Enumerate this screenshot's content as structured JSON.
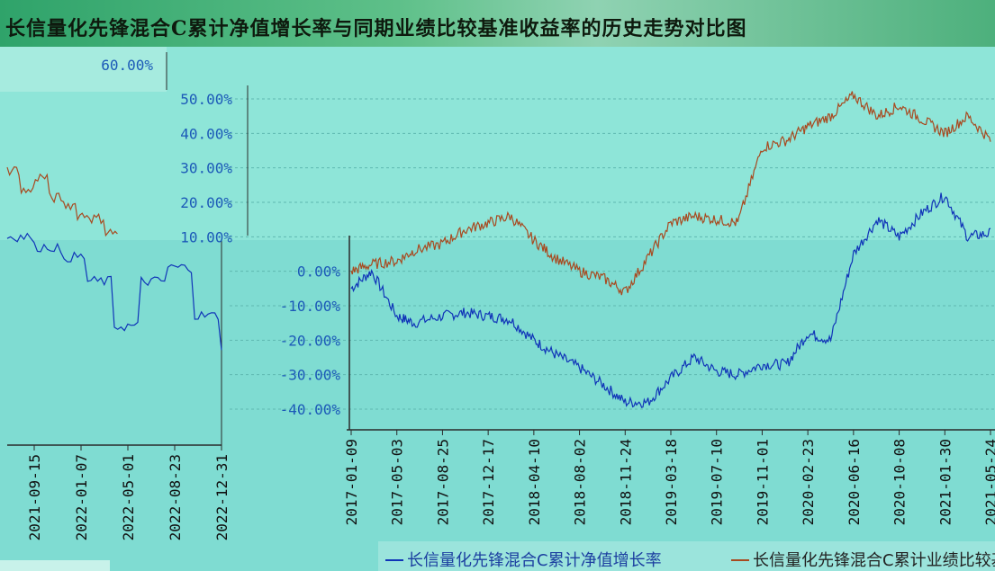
{
  "title": "长信量化先锋混合C累计净值增长率与同期业绩比较基准收益率的历史走势对比图",
  "chart_data": {
    "type": "line",
    "title": "长信量化先锋混合C累计净值增长率与同期业绩比较基准收益率的历史走势对比图",
    "xlabel": "",
    "ylabel": "",
    "ylim": [
      -40,
      50
    ],
    "yticks": [
      -40,
      -30,
      -20,
      -10,
      0,
      10,
      20,
      30,
      40,
      50
    ],
    "ytick_labels": [
      "-40.00%",
      "-30.00%",
      "-20.00%",
      "-10.00%",
      "0.00%",
      "10.00%",
      "20.00%",
      "30.00%",
      "40.00%",
      "50.00%"
    ],
    "extra_ytick_label": "60.00%",
    "x_tick_labels": [
      "2017-01-09",
      "2017-05-03",
      "2017-08-25",
      "2017-12-17",
      "2018-04-10",
      "2018-08-02",
      "2018-11-24",
      "2019-03-18",
      "2019-07-10",
      "2019-11-01",
      "2020-02-23",
      "2020-06-16",
      "2020-10-08",
      "2021-01-30",
      "2021-05-24"
    ],
    "x_tick_labels_left_panel": [
      "2021-09-15",
      "2022-01-07",
      "2022-05-01",
      "2022-08-23",
      "2022-12-31"
    ],
    "legend_placement": "bottom",
    "series": [
      {
        "name": "长信量化先锋混合C累计净值增长率",
        "color": "#1034b8",
        "x": [
          "2017-01-09",
          "2017-03-01",
          "2017-05-03",
          "2017-06-15",
          "2017-08-25",
          "2017-10-20",
          "2017-12-17",
          "2018-02-10",
          "2018-04-10",
          "2018-06-01",
          "2018-08-02",
          "2018-10-01",
          "2018-11-24",
          "2019-01-20",
          "2019-03-18",
          "2019-05-15",
          "2019-07-10",
          "2019-09-01",
          "2019-11-01",
          "2020-01-01",
          "2020-02-23",
          "2020-04-20",
          "2020-06-16",
          "2020-08-15",
          "2020-10-08",
          "2020-12-05",
          "2021-01-30",
          "2021-03-28",
          "2021-05-24",
          "2021-07-20",
          "2021-09-15",
          "2021-11-10",
          "2022-01-07",
          "2022-03-05",
          "2022-05-01",
          "2022-06-26",
          "2022-08-23",
          "2022-10-25",
          "2022-12-31"
        ],
        "values": [
          -5,
          0,
          -13,
          -15,
          -13,
          -12,
          -13,
          -14,
          -20,
          -24,
          -28,
          -33,
          -38,
          -38,
          -31,
          -25,
          -29,
          -30,
          -27,
          -27,
          -18,
          -20,
          5,
          15,
          10,
          17,
          22,
          10,
          11,
          12,
          8,
          5,
          2,
          -5,
          -18,
          -5,
          -1,
          -15,
          -24
        ]
      },
      {
        "name": "长信量化先锋混合C累计业绩比较基准收益率",
        "color": "#a84a20",
        "x": [
          "2017-01-09",
          "2017-03-01",
          "2017-05-03",
          "2017-06-15",
          "2017-08-25",
          "2017-10-20",
          "2017-12-17",
          "2018-02-10",
          "2018-04-10",
          "2018-06-01",
          "2018-08-02",
          "2018-10-01",
          "2018-11-24",
          "2019-01-20",
          "2019-03-18",
          "2019-05-15",
          "2019-07-10",
          "2019-09-01",
          "2019-11-01",
          "2020-01-01",
          "2020-02-23",
          "2020-04-20",
          "2020-06-16",
          "2020-08-15",
          "2020-10-08",
          "2020-12-05",
          "2021-01-30",
          "2021-03-28",
          "2021-05-24",
          "2021-07-20",
          "2021-09-15",
          "2021-11-10",
          "2022-01-07",
          "2022-03-05",
          "2022-05-01",
          "2022-06-26",
          "2022-08-23",
          "2022-10-25",
          "2022-12-31"
        ],
        "values": [
          0,
          2,
          3,
          6,
          8,
          12,
          14,
          16,
          9,
          4,
          0,
          -2,
          -6,
          4,
          14,
          16,
          15,
          14,
          36,
          38,
          42,
          45,
          51,
          45,
          48,
          44,
          40,
          45,
          38,
          33,
          28,
          22,
          26,
          20,
          18,
          15,
          14,
          10,
          9
        ]
      }
    ]
  },
  "legend": {
    "item1": "长信量化先锋混合C累计净值增长率",
    "item2": "长信量化先锋混合C累计业绩比较基准收益率"
  }
}
